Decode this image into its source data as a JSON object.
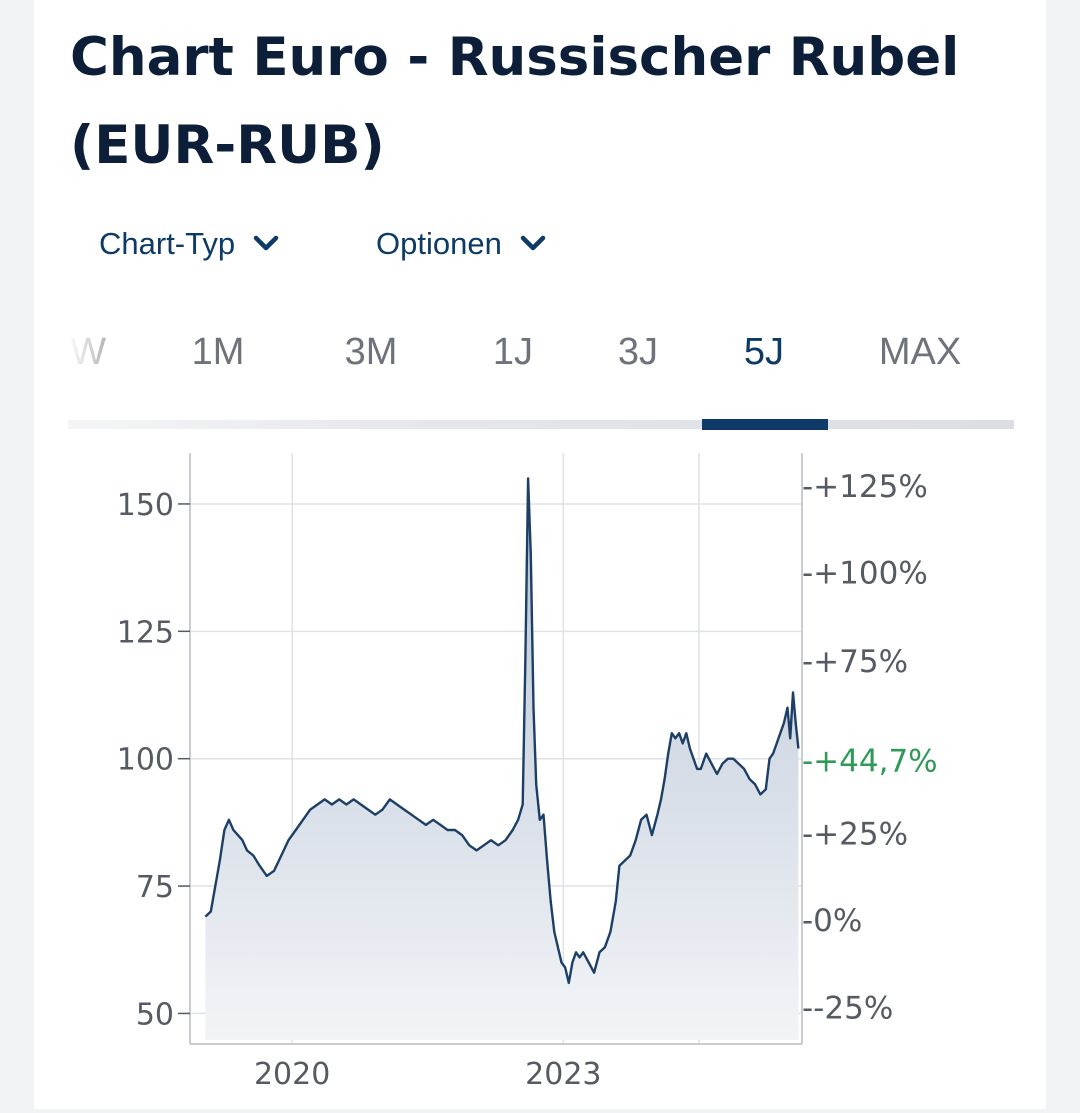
{
  "page": {
    "title": "Chart Euro - Russischer Rubel (EUR-RUB)"
  },
  "controls": {
    "chart_type_label": "Chart-Typ",
    "options_label": "Optionen"
  },
  "tabs": [
    {
      "label": "W",
      "active": false
    },
    {
      "label": "1M",
      "active": false
    },
    {
      "label": "3M",
      "active": false
    },
    {
      "label": "1J",
      "active": false
    },
    {
      "label": "3J",
      "active": false
    },
    {
      "label": "5J",
      "active": true
    },
    {
      "label": "MAX",
      "active": false
    }
  ],
  "colors": {
    "line": "#1d3f66",
    "area_top": "#b7c4d5",
    "area_bottom": "#f2f4f7",
    "accent": "#0d3a66",
    "current_label": "#2e9a58",
    "grid": "#dfe2e6",
    "axis_text": "#555b63"
  },
  "chart_data": {
    "type": "area",
    "x_ticks": [
      "2020",
      "2023"
    ],
    "y_ticks": [
      50,
      75,
      100,
      125,
      150
    ],
    "ylim": [
      44,
      160
    ],
    "right_ticks": [
      {
        "label": "+125%",
        "value": 153.5
      },
      {
        "label": "+100%",
        "value": 136.5
      },
      {
        "label": "+75%",
        "value": 119.2
      },
      {
        "label": "+25%",
        "value": 85.3
      },
      {
        "label": "0%",
        "value": 68.3
      },
      {
        "label": "-25%",
        "value": 51.2
      }
    ],
    "current_label": "+44,7%",
    "current_value": 99.6,
    "grid": true,
    "series": [
      {
        "values": [
          [
            2018.62,
            69
          ],
          [
            2018.68,
            70
          ],
          [
            2018.73,
            75
          ],
          [
            2018.78,
            80
          ],
          [
            2018.83,
            86
          ],
          [
            2018.88,
            88
          ],
          [
            2018.93,
            86
          ],
          [
            2018.98,
            85
          ],
          [
            2019.03,
            84
          ],
          [
            2019.08,
            82
          ],
          [
            2019.15,
            81
          ],
          [
            2019.22,
            79
          ],
          [
            2019.3,
            77
          ],
          [
            2019.38,
            78
          ],
          [
            2019.46,
            81
          ],
          [
            2019.54,
            84
          ],
          [
            2019.62,
            86
          ],
          [
            2019.7,
            88
          ],
          [
            2019.78,
            90
          ],
          [
            2019.86,
            91
          ],
          [
            2019.94,
            92
          ],
          [
            2020.02,
            91
          ],
          [
            2020.1,
            92
          ],
          [
            2020.18,
            91
          ],
          [
            2020.26,
            92
          ],
          [
            2020.34,
            91
          ],
          [
            2020.42,
            90
          ],
          [
            2020.5,
            89
          ],
          [
            2020.58,
            90
          ],
          [
            2020.66,
            92
          ],
          [
            2020.74,
            91
          ],
          [
            2020.82,
            90
          ],
          [
            2020.9,
            89
          ],
          [
            2020.98,
            88
          ],
          [
            2021.06,
            87
          ],
          [
            2021.14,
            88
          ],
          [
            2021.22,
            87
          ],
          [
            2021.3,
            86
          ],
          [
            2021.38,
            86
          ],
          [
            2021.46,
            85
          ],
          [
            2021.54,
            83
          ],
          [
            2021.62,
            82
          ],
          [
            2021.7,
            83
          ],
          [
            2021.78,
            84
          ],
          [
            2021.86,
            83
          ],
          [
            2021.94,
            84
          ],
          [
            2022.02,
            86
          ],
          [
            2022.08,
            88
          ],
          [
            2022.13,
            91
          ],
          [
            2022.16,
            120
          ],
          [
            2022.19,
            155
          ],
          [
            2022.22,
            140
          ],
          [
            2022.25,
            110
          ],
          [
            2022.28,
            95
          ],
          [
            2022.32,
            88
          ],
          [
            2022.36,
            89
          ],
          [
            2022.4,
            80
          ],
          [
            2022.44,
            72
          ],
          [
            2022.48,
            66
          ],
          [
            2022.52,
            63
          ],
          [
            2022.56,
            60
          ],
          [
            2022.6,
            59
          ],
          [
            2022.64,
            56
          ],
          [
            2022.68,
            60
          ],
          [
            2022.72,
            62
          ],
          [
            2022.76,
            61
          ],
          [
            2022.8,
            62
          ],
          [
            2022.86,
            60
          ],
          [
            2022.92,
            58
          ],
          [
            2022.98,
            62
          ],
          [
            2023.04,
            63
          ],
          [
            2023.1,
            66
          ],
          [
            2023.16,
            72
          ],
          [
            2023.2,
            79
          ],
          [
            2023.26,
            80
          ],
          [
            2023.32,
            81
          ],
          [
            2023.38,
            84
          ],
          [
            2023.44,
            88
          ],
          [
            2023.5,
            89
          ],
          [
            2023.56,
            85
          ],
          [
            2023.62,
            89
          ],
          [
            2023.66,
            92
          ],
          [
            2023.7,
            96
          ],
          [
            2023.74,
            101
          ],
          [
            2023.78,
            105
          ],
          [
            2023.82,
            104
          ],
          [
            2023.86,
            105
          ],
          [
            2023.9,
            103
          ],
          [
            2023.94,
            105
          ],
          [
            2023.98,
            102
          ],
          [
            2024.02,
            100
          ],
          [
            2024.06,
            98
          ],
          [
            2024.1,
            98
          ],
          [
            2024.16,
            101
          ],
          [
            2024.22,
            99
          ],
          [
            2024.28,
            97
          ],
          [
            2024.34,
            99
          ],
          [
            2024.4,
            100
          ],
          [
            2024.46,
            100
          ],
          [
            2024.52,
            99
          ],
          [
            2024.58,
            98
          ],
          [
            2024.64,
            96
          ],
          [
            2024.7,
            95
          ],
          [
            2024.76,
            93
          ],
          [
            2024.82,
            94
          ],
          [
            2024.86,
            100
          ],
          [
            2024.9,
            101
          ],
          [
            2024.94,
            103
          ],
          [
            2024.98,
            105
          ],
          [
            2025.02,
            107
          ],
          [
            2025.06,
            110
          ],
          [
            2025.09,
            104
          ],
          [
            2025.12,
            113
          ],
          [
            2025.15,
            107
          ],
          [
            2025.18,
            102
          ]
        ]
      }
    ]
  }
}
